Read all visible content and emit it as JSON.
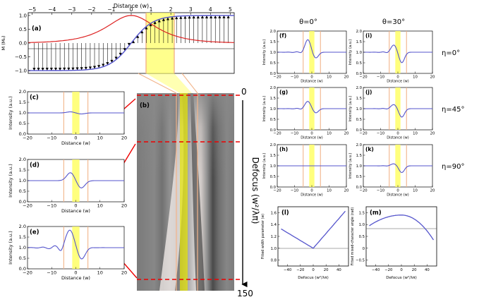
{
  "colors": {
    "curve": "#5555cc",
    "yellow": "#ffff66",
    "orange": "#f2b48a",
    "red_marker": "#ee0000",
    "red_profile": "#dd2222",
    "defocus_arrow": "#000000"
  },
  "panel_a": {
    "label": "(a)",
    "xlabel": "Distance (w)",
    "ylabel": "M (M₀)",
    "xticks": [
      "−5",
      "−4",
      "−3",
      "−2",
      "−1",
      "0",
      "1",
      "2",
      "3",
      "4",
      "5"
    ],
    "yticks": [
      "1.0",
      "0.5",
      "0.0",
      "−0.5",
      "−1.0"
    ]
  },
  "panel_b": {
    "label": "(b)",
    "defocus_label": "Defocus (w²/λπ)",
    "top_value": "0",
    "bottom_value": "150"
  },
  "profile_common": {
    "ylabel": "Intensity (a.u.)",
    "xlabel": "Distance (w)",
    "yticks": [
      "2.0",
      "1.5",
      "1.0",
      "0.5",
      "0.0"
    ],
    "xticks": [
      "−20",
      "−10",
      "0",
      "10",
      "20"
    ]
  },
  "panels_left": [
    {
      "label": "(c)"
    },
    {
      "label": "(d)"
    },
    {
      "label": "(e)"
    }
  ],
  "column_headers": {
    "theta0": "θ=0°",
    "theta30": "θ=30°"
  },
  "row_labels": [
    "η=0°",
    "η=45°",
    "η=90°"
  ],
  "panels_grid": [
    {
      "label": "(f)"
    },
    {
      "label": "(i)"
    },
    {
      "label": "(g)"
    },
    {
      "label": "(j)"
    },
    {
      "label": "(h)"
    },
    {
      "label": "(k)"
    }
  ],
  "panel_l": {
    "label": "(l)",
    "ylabel": "Fitted width parameter (w)",
    "xlabel": "Defocus (w²/λπ)",
    "xticks": [
      "−40",
      "−20",
      "0",
      "20",
      "40"
    ],
    "yticks": [
      "1.6",
      "1.4",
      "1.2",
      "1.0",
      "0.8"
    ]
  },
  "panel_m": {
    "label": "(m)",
    "ylabel": "Fitted mixed-character angle (rad)",
    "xlabel": "Defocus (w²/λπ)",
    "xticks": [
      "−40",
      "−20",
      "0",
      "20",
      "40"
    ],
    "yticks": [
      "1.5",
      "1.0",
      "0.5",
      "0",
      "−0.5"
    ]
  }
}
